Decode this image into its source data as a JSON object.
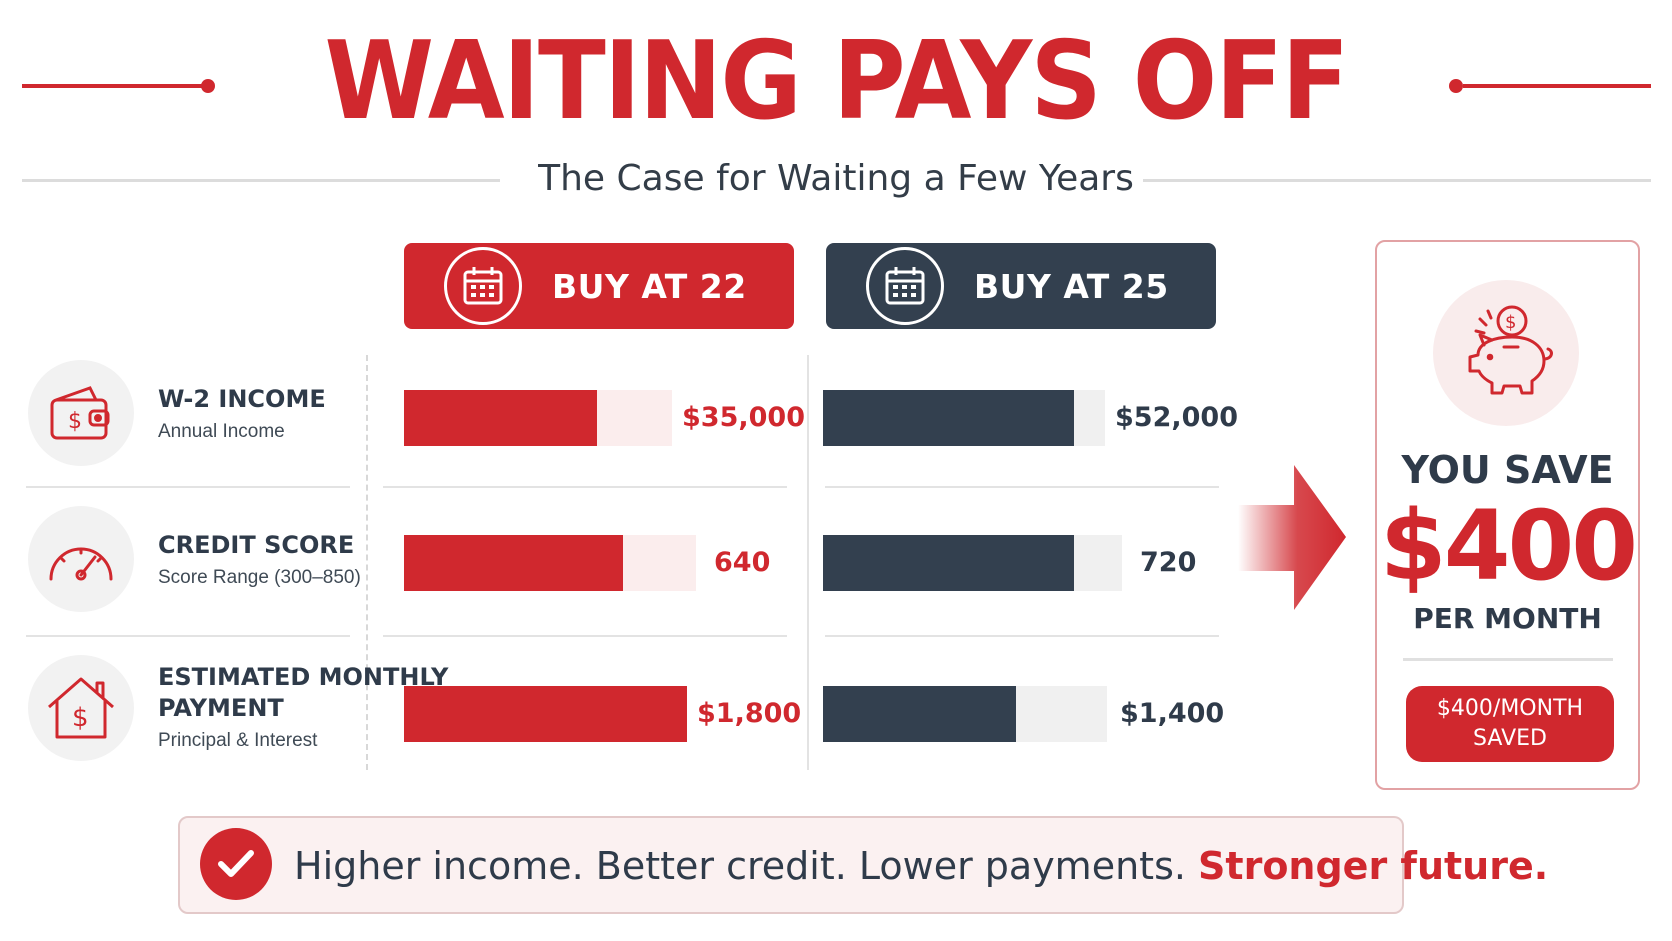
{
  "header": {
    "title": "WAITING PAYS OFF",
    "subtitle": "The Case for Waiting a Few Years"
  },
  "columns": [
    {
      "label": "BUY AT 22",
      "icon": "calendar-icon",
      "color": "#d0282e"
    },
    {
      "label": "BUY AT 25",
      "icon": "calendar-icon",
      "color": "#33404f"
    }
  ],
  "rows": [
    {
      "title": "W-2 INCOME",
      "subtitle": "Annual Income",
      "icon": "wallet-icon",
      "buy_at_22": {
        "value": "$35,000",
        "fill": 0.72
      },
      "buy_at_25": {
        "value": "$52,000",
        "fill": 0.89
      }
    },
    {
      "title": "CREDIT SCORE",
      "subtitle": "Score Range (300–850)",
      "icon": "gauge-icon",
      "buy_at_22": {
        "value": "640",
        "fill": 0.75
      },
      "buy_at_25": {
        "value": "720",
        "fill": 0.84
      }
    },
    {
      "title_line1": "ESTIMATED MONTHLY",
      "title_line2": "PAYMENT",
      "subtitle": "Principal & Interest",
      "icon": "house-dollar-icon",
      "buy_at_22": {
        "value": "$1,800",
        "fill": 1.0
      },
      "buy_at_25": {
        "value": "$1,400",
        "fill": 0.68
      }
    }
  ],
  "savings": {
    "icon": "piggy-bank-icon",
    "you_save": "YOU SAVE",
    "amount": "$400",
    "per_month": "PER MONTH",
    "badge": "$400/MONTH SAVED"
  },
  "banner": {
    "icon": "checkmark-icon",
    "text": "Higher income. Better credit. Lower payments.",
    "highlight": "Stronger future."
  },
  "colors": {
    "accent_red": "#d0282e",
    "dark_slate": "#33404f",
    "track_red": "#fbeded",
    "track_gray": "#f0f0f0"
  }
}
